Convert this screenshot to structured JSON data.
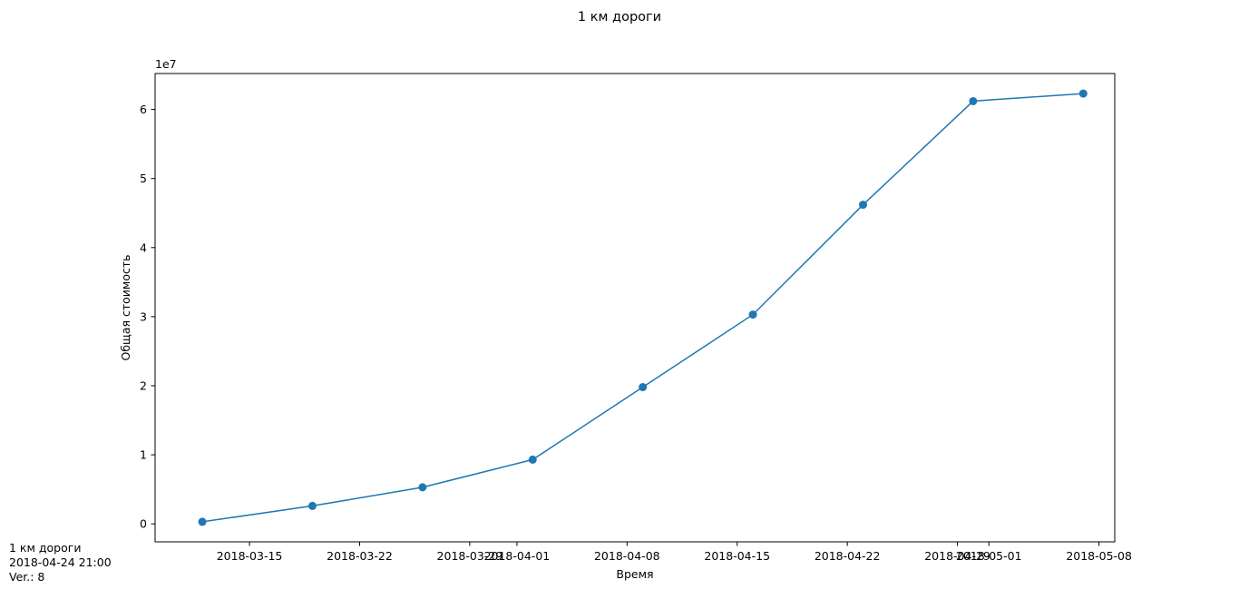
{
  "chart_data": {
    "type": "line",
    "title": "1 км дороги",
    "xlabel": "Время",
    "ylabel": "Общая стоимость",
    "y_offset_label": "1e7",
    "x_axis_type": "date",
    "xlim": [
      "2018-03-09",
      "2018-05-09"
    ],
    "ylim": [
      -2600000,
      65200000
    ],
    "x_ticks": [
      "2018-03-15",
      "2018-03-22",
      "2018-03-29",
      "2018-04-01",
      "2018-04-08",
      "2018-04-15",
      "2018-04-22",
      "2018-04-29",
      "2018-05-01",
      "2018-05-08"
    ],
    "y_ticks": [
      0,
      10000000,
      20000000,
      30000000,
      40000000,
      50000000,
      60000000
    ],
    "y_tick_labels": [
      "0",
      "1",
      "2",
      "3",
      "4",
      "5",
      "6"
    ],
    "grid": false,
    "marker": "circle",
    "color": "#1f77b4",
    "series": [
      {
        "x": [
          "2018-03-12",
          "2018-03-19",
          "2018-03-26",
          "2018-04-02",
          "2018-04-09",
          "2018-04-16",
          "2018-04-23",
          "2018-04-30",
          "2018-05-07"
        ],
        "values": [
          300000,
          2600000,
          5300000,
          9300000,
          19800000,
          30300000,
          46200000,
          61200000,
          62300000
        ]
      }
    ]
  },
  "footer": {
    "line1": "1 км дороги",
    "line2": "2018-04-24 21:00",
    "line3": "Ver.: 8"
  }
}
